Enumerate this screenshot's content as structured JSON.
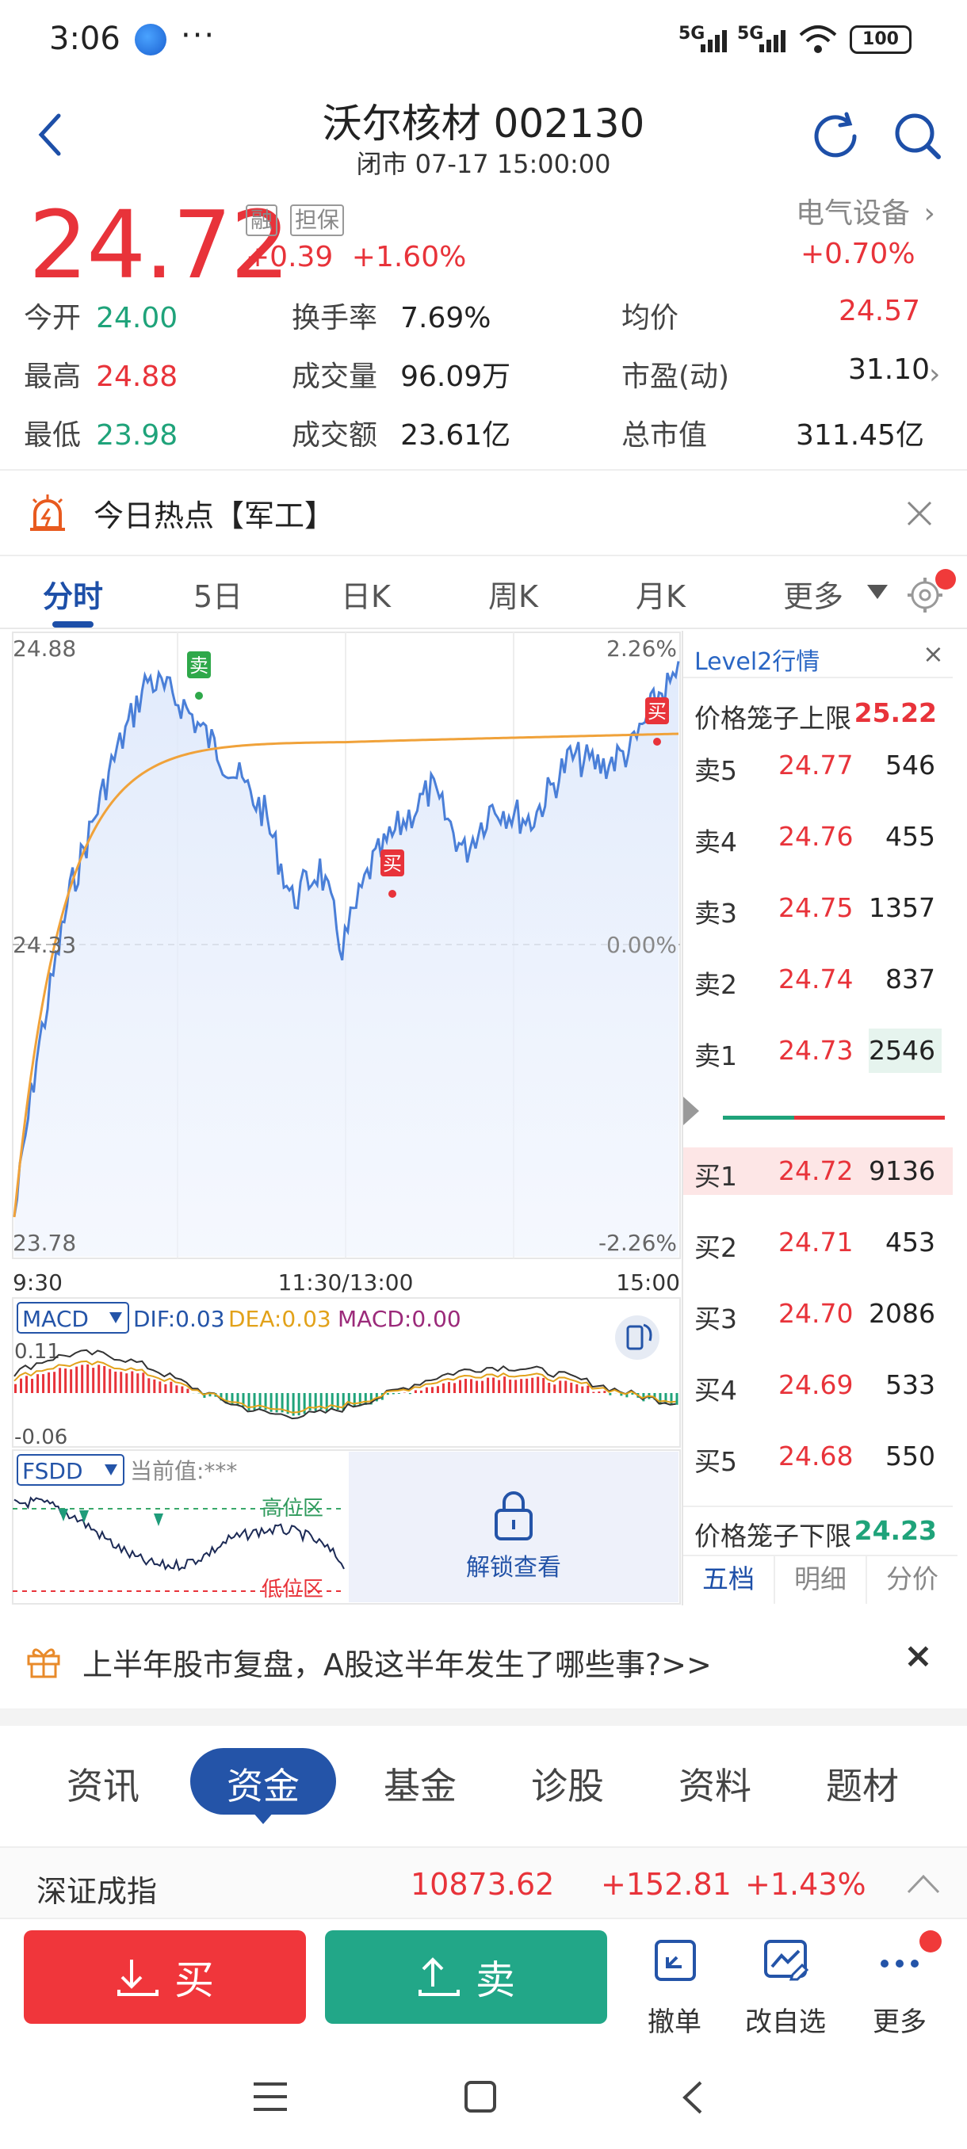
{
  "status_bar": {
    "time": "3:06",
    "dots": "···",
    "net1": "5G",
    "net2": "5G",
    "battery": "100"
  },
  "header": {
    "title": "沃尔核材 002130",
    "subtitle": "闭市 07-17 15:00:00"
  },
  "quote": {
    "price": "24.72",
    "tag_margin": "融",
    "tag_guarantee": "担保",
    "change": "+0.39",
    "change_pct": "+1.60%",
    "sector_name": "电气设备",
    "sector_change": "+0.70%"
  },
  "stats": [
    {
      "label": "今开",
      "value": "24.00",
      "color": "green"
    },
    {
      "label": "换手率",
      "value": "7.69%",
      "color": "normal"
    },
    {
      "label": "均价",
      "value": "24.57",
      "color": "red"
    },
    {
      "label": "最高",
      "value": "24.88",
      "color": "red"
    },
    {
      "label": "成交量",
      "value": "96.09万",
      "color": "normal"
    },
    {
      "label": "市盈(动)",
      "value": "31.10",
      "color": "normal"
    },
    {
      "label": "最低",
      "value": "23.98",
      "color": "green"
    },
    {
      "label": "成交额",
      "value": "23.61亿",
      "color": "normal"
    },
    {
      "label": "总市值",
      "value": "311.45亿",
      "color": "normal"
    }
  ],
  "hot_topic": {
    "text": "今日热点【军工】"
  },
  "tabs": [
    "分时",
    "5日",
    "日K",
    "周K",
    "月K",
    "更多"
  ],
  "chart": {
    "price_high": "24.88",
    "price_mid": "24.33",
    "price_low": "23.78",
    "pct_high": "2.26%",
    "pct_mid": "0.00%",
    "pct_low": "-2.26%",
    "time_start": "9:30",
    "time_mid": "11:30/13:00",
    "time_end": "15:00",
    "sell_marker": "卖",
    "buy_marker": "买",
    "macd_label": "MACD",
    "dif": "DIF:0.03",
    "dea": "DEA:0.03",
    "macd": "MACD:0.00",
    "macd_top": "0.11",
    "macd_bottom": "-0.06",
    "fsdd_label": "FSDD",
    "fsdd_current": "当前值:***",
    "high_zone": "高位区",
    "low_zone": "低位区",
    "unlock": "解锁查看"
  },
  "level2": {
    "title": "Level2行情",
    "cage_up_label": "价格笼子上限",
    "cage_up_value": "25.22",
    "asks": [
      {
        "label": "卖5",
        "price": "24.77",
        "vol": "546"
      },
      {
        "label": "卖4",
        "price": "24.76",
        "vol": "455"
      },
      {
        "label": "卖3",
        "price": "24.75",
        "vol": "1357"
      },
      {
        "label": "卖2",
        "price": "24.74",
        "vol": "837"
      },
      {
        "label": "卖1",
        "price": "24.73",
        "vol": "2546"
      }
    ],
    "bids": [
      {
        "label": "买1",
        "price": "24.72",
        "vol": "9136"
      },
      {
        "label": "买2",
        "price": "24.71",
        "vol": "453"
      },
      {
        "label": "买3",
        "price": "24.70",
        "vol": "2086"
      },
      {
        "label": "买4",
        "price": "24.69",
        "vol": "533"
      },
      {
        "label": "买5",
        "price": "24.68",
        "vol": "550"
      }
    ],
    "cage_down_label": "价格笼子下限",
    "cage_down_value": "24.23",
    "tabs": [
      "五档",
      "明细",
      "分价"
    ]
  },
  "banner": {
    "text": "上半年股市复盘，A股这半年发生了哪些事?>>"
  },
  "sub_tabs": [
    "资讯",
    "资金",
    "基金",
    "诊股",
    "资料",
    "题材"
  ],
  "index": {
    "name": "深证成指",
    "value": "10873.62",
    "change": "+152.81",
    "pct": "+1.43%"
  },
  "actions": {
    "buy": "买",
    "sell": "卖",
    "cancel": "撤单",
    "edit_watch": "改自选",
    "more": "更多"
  },
  "colors": {
    "red": "#e8333a",
    "green": "#1fa37a",
    "blue": "#1d4fa8",
    "line": "#4a7fd8",
    "avg": "#f0a23a"
  }
}
